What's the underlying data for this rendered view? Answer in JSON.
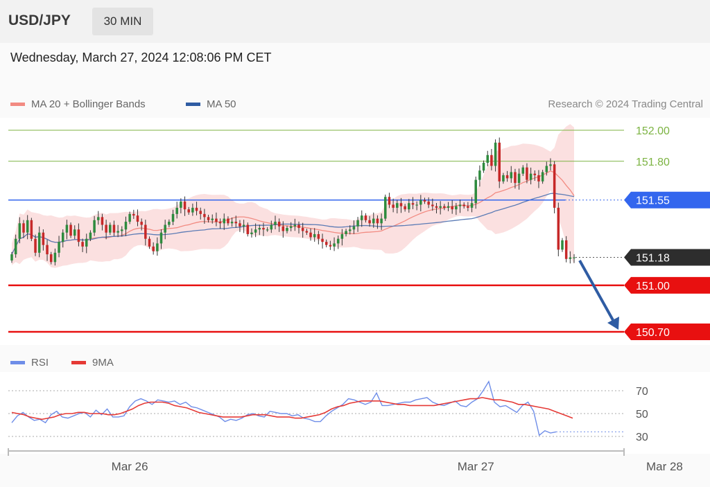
{
  "header": {
    "symbol": "USD/JPY",
    "timeframe": "30 MIN",
    "datetime": "Wednesday, March 27, 2024 12:08:06 PM CET"
  },
  "legend": {
    "ma20_bb": "MA 20 + Bollinger Bands",
    "ma50": "MA 50",
    "copyright": "Research © 2024 Trading Central",
    "rsi": "RSI",
    "rsi_ma": "9MA"
  },
  "colors": {
    "resistance": "#7cb342",
    "pivot": "#3366ee",
    "support": "#e81010",
    "current": "#2d2d2d",
    "bull": "#2e8b3e",
    "bear": "#c62828",
    "bb": "#f7c6c6",
    "ma20": "#f28b82",
    "ma50": "#5b7bb5",
    "rsi": "#6e8de8",
    "rsi_ma": "#e53935",
    "arrow": "#2f5ca3"
  },
  "chart_data": [
    {
      "type": "candlestick",
      "ylim": [
        150.63,
        152.08
      ],
      "levels": [
        {
          "label": "152.00",
          "value": 152.0,
          "kind": "resistance"
        },
        {
          "label": "151.80",
          "value": 151.8,
          "kind": "resistance"
        },
        {
          "label": "151.55",
          "value": 151.55,
          "kind": "pivot"
        },
        {
          "label": "151.18",
          "value": 151.18,
          "kind": "current"
        },
        {
          "label": "151.00",
          "value": 151.0,
          "kind": "support"
        },
        {
          "label": "150.70",
          "value": 150.7,
          "kind": "support"
        }
      ],
      "x_ticks": [
        {
          "label": "Mar 26",
          "index": 30
        },
        {
          "label": "Mar 27",
          "index": 118
        },
        {
          "label": "Mar 28",
          "index": 166
        }
      ],
      "closes": [
        151.2,
        151.3,
        151.4,
        151.34,
        151.42,
        151.3,
        151.21,
        151.34,
        151.26,
        151.2,
        151.15,
        151.21,
        151.28,
        151.34,
        151.39,
        151.32,
        151.36,
        151.28,
        151.25,
        151.3,
        151.34,
        151.42,
        151.44,
        151.39,
        151.34,
        151.39,
        151.34,
        151.35,
        151.36,
        151.41,
        151.46,
        151.45,
        151.41,
        151.39,
        151.3,
        151.25,
        151.22,
        151.27,
        151.34,
        151.39,
        151.41,
        151.46,
        151.5,
        151.54,
        151.49,
        151.47,
        151.5,
        151.48,
        151.46,
        151.44,
        151.42,
        151.43,
        151.41,
        151.4,
        151.43,
        151.4,
        151.41,
        151.4,
        151.38,
        151.39,
        151.33,
        151.34,
        151.36,
        151.37,
        151.36,
        151.36,
        151.39,
        151.41,
        151.38,
        151.35,
        151.37,
        151.38,
        151.39,
        151.37,
        151.35,
        151.34,
        151.31,
        151.33,
        151.3,
        151.28,
        151.26,
        151.25,
        151.27,
        151.3,
        151.33,
        151.35,
        151.36,
        151.38,
        151.42,
        151.45,
        151.42,
        151.4,
        151.43,
        151.4,
        151.43,
        151.57,
        151.52,
        151.5,
        151.53,
        151.51,
        151.49,
        151.53,
        151.52,
        151.52,
        151.55,
        151.54,
        151.52,
        151.51,
        151.5,
        151.51,
        151.5,
        151.51,
        151.49,
        151.51,
        151.52,
        151.51,
        151.5,
        151.53,
        151.68,
        151.74,
        151.79,
        151.84,
        151.77,
        151.92,
        151.67,
        151.71,
        151.69,
        151.73,
        151.66,
        151.72,
        151.76,
        151.68,
        151.72,
        151.71,
        151.67,
        151.73,
        151.77,
        151.78,
        151.5,
        151.23,
        151.29,
        151.17,
        151.18,
        151.18
      ],
      "rsi": {
        "ticks": [
          70,
          50,
          30
        ],
        "ylim": [
          25,
          82
        ],
        "rsi_values": [
          42,
          48,
          51,
          47,
          44,
          45,
          42,
          49,
          52,
          47,
          46,
          48,
          50,
          51,
          47,
          53,
          49,
          54,
          47,
          47,
          48,
          56,
          61,
          63,
          61,
          58,
          62,
          61,
          60,
          61,
          58,
          60,
          56,
          55,
          53,
          51,
          49,
          47,
          43,
          45,
          44,
          46,
          49,
          50,
          48,
          47,
          52,
          51,
          50,
          50,
          48,
          49,
          46,
          45,
          43,
          43,
          48,
          52,
          55,
          58,
          63,
          62,
          60,
          58,
          60,
          68,
          57,
          57,
          58,
          59,
          60,
          60,
          62,
          63,
          64,
          60,
          58,
          57,
          59,
          61,
          57,
          56,
          60,
          63,
          70,
          78,
          60,
          56,
          57,
          54,
          51,
          57,
          60,
          52,
          31,
          35,
          33,
          34
        ],
        "ma_values": [
          51,
          50,
          49,
          47,
          46,
          45,
          46,
          47,
          49,
          50,
          50,
          51,
          51,
          50,
          50,
          50,
          49,
          49,
          50,
          52,
          54,
          57,
          59,
          60,
          60,
          60,
          59,
          57,
          56,
          55,
          53,
          51,
          50,
          49,
          48,
          47,
          47,
          47,
          47,
          48,
          49,
          49,
          49,
          48,
          47,
          47,
          47,
          46,
          46,
          47,
          48,
          49,
          51,
          54,
          56,
          57,
          59,
          60,
          61,
          61,
          61,
          61,
          60,
          59,
          58,
          58,
          57,
          57,
          57,
          57,
          57,
          58,
          59,
          60,
          61,
          62,
          63,
          63,
          64,
          63,
          62,
          62,
          61,
          60,
          58,
          58,
          57,
          56,
          55,
          54,
          52,
          50,
          48,
          46
        ]
      }
    }
  ]
}
